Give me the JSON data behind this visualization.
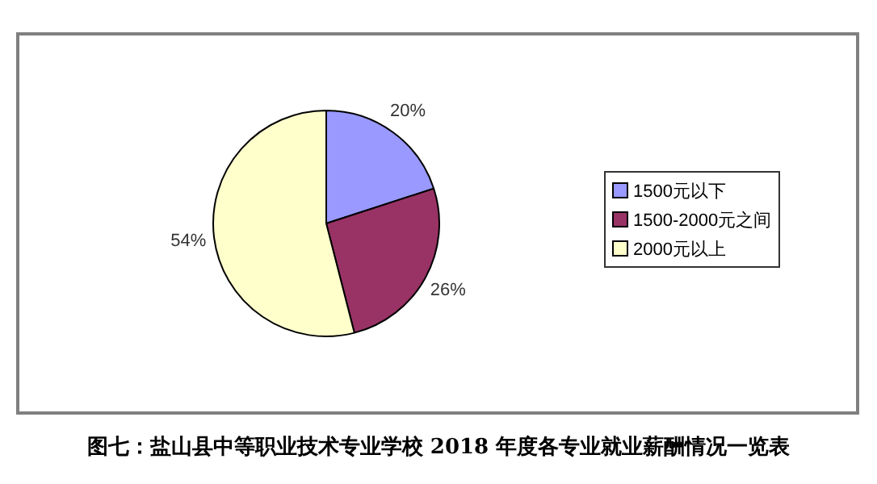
{
  "chart_data": {
    "type": "pie",
    "categories": [
      "1500元以下",
      "1500-2000元之间",
      "2000元以上"
    ],
    "values": [
      20,
      26,
      54
    ],
    "colors": [
      "#9999ff",
      "#993366",
      "#ffffcc"
    ],
    "value_labels": [
      "20%",
      "26%",
      "54%"
    ],
    "legend": "right",
    "annotations": [
      "图七：盐山县中等职业技术专业学校 2018 年度各专业就业薪酬情况一览表"
    ]
  }
}
